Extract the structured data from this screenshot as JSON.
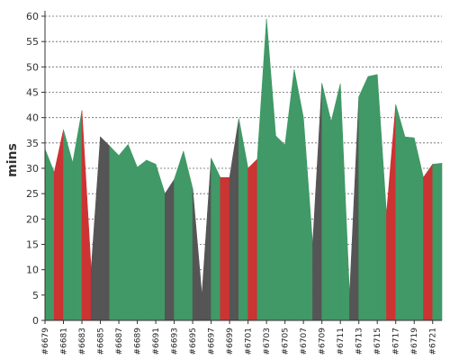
{
  "chart_data": {
    "type": "area",
    "ylabel": "mins",
    "ylim": [
      0,
      60
    ],
    "yticks": [
      0,
      5,
      10,
      15,
      20,
      25,
      30,
      35,
      40,
      45,
      50,
      55,
      60
    ],
    "grid": true,
    "colors": {
      "pass": "#409966",
      "fail": "#cc3333",
      "other": "#555555",
      "grid": "#666666"
    },
    "x": [
      "#6679",
      "#6680",
      "#6681",
      "#6682",
      "#6683",
      "#6684",
      "#6685",
      "#6686",
      "#6687",
      "#6688",
      "#6689",
      "#6690",
      "#6691",
      "#6692",
      "#6693",
      "#6694",
      "#6695",
      "#6696",
      "#6697",
      "#6698",
      "#6699",
      "#6700",
      "#6701",
      "#6702",
      "#6703",
      "#6704",
      "#6705",
      "#6706",
      "#6707",
      "#6708",
      "#6709",
      "#6710",
      "#6711",
      "#6712",
      "#6713",
      "#6714",
      "#6715",
      "#6716",
      "#6717",
      "#6718",
      "#6719",
      "#6720",
      "#6721",
      "#6722"
    ],
    "xtick_labels": [
      "#6679",
      "#6681",
      "#6683",
      "#6685",
      "#6687",
      "#6689",
      "#6691",
      "#6693",
      "#6695",
      "#6697",
      "#6699",
      "#6701",
      "#6703",
      "#6705",
      "#6707",
      "#6709",
      "#6711",
      "#6713",
      "#6715",
      "#6717",
      "#6719",
      "#6721"
    ],
    "values": [
      33.8,
      29.2,
      37.6,
      31.1,
      41.4,
      10.0,
      36.2,
      34.4,
      32.5,
      34.7,
      30.2,
      31.6,
      30.8,
      25.0,
      27.8,
      33.4,
      26.0,
      5.0,
      32.0,
      28.2,
      28.2,
      39.8,
      30.0,
      31.8,
      59.5,
      36.4,
      34.6,
      49.5,
      40.0,
      15.0,
      46.8,
      39.2,
      46.7,
      5.0,
      44.1,
      48.1,
      48.5,
      21.0,
      42.6,
      36.2,
      36.0,
      28.2,
      30.8,
      31.0
    ],
    "status": [
      "pass",
      "fail",
      "pass",
      "pass",
      "fail",
      "other",
      "other",
      "pass",
      "pass",
      "pass",
      "pass",
      "pass",
      "pass",
      "other",
      "pass",
      "pass",
      "other",
      "other",
      "pass",
      "fail",
      "other",
      "pass",
      "fail",
      "pass",
      "pass",
      "pass",
      "pass",
      "pass",
      "pass",
      "other",
      "pass",
      "pass",
      "pass",
      "other",
      "pass",
      "pass",
      "pass",
      "fail",
      "pass",
      "pass",
      "pass",
      "fail",
      "pass",
      "pass"
    ]
  }
}
